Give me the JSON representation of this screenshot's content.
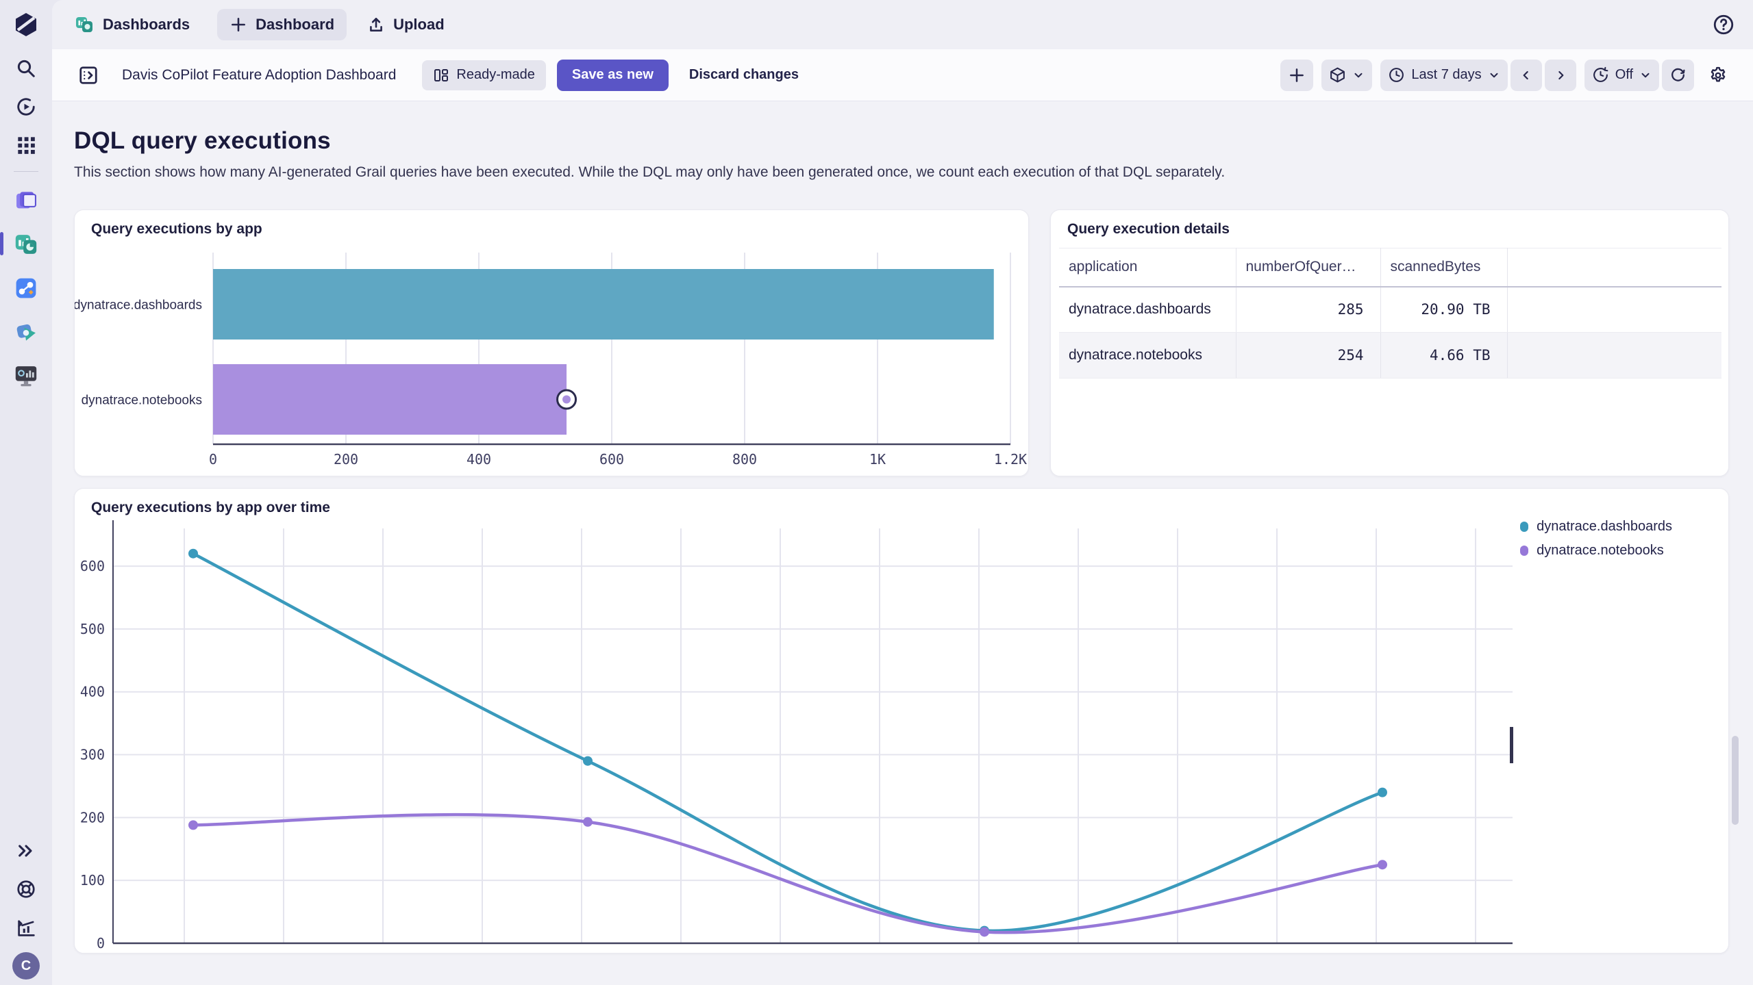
{
  "topbar": {
    "tab_dashboards": "Dashboards",
    "tab_new_dashboard": "Dashboard",
    "tab_upload": "Upload"
  },
  "header": {
    "dashboard_title": "Davis CoPilot Feature Adoption Dashboard",
    "badge_ready_made": "Ready-made",
    "save_as_new": "Save as new",
    "discard_changes": "Discard changes",
    "timeframe_label": "Last 7 days",
    "auto_refresh_label": "Off"
  },
  "section": {
    "title": "DQL query executions",
    "description": "This section shows how many AI-generated Grail queries have been executed. While the DQL may only have been generated once, we count each execution of that DQL separately."
  },
  "bar_tile": {
    "title": "Query executions by app"
  },
  "table_tile": {
    "title": "Query execution details",
    "columns": [
      "application",
      "numberOfQuer…",
      "scannedBytes"
    ],
    "rows": [
      {
        "application": "dynatrace.dashboards",
        "numberOfQueries": "285",
        "scannedBytes": "20.90 TB"
      },
      {
        "application": "dynatrace.notebooks",
        "numberOfQueries": "254",
        "scannedBytes": "4.66 TB"
      }
    ]
  },
  "line_tile": {
    "title": "Query executions by app over time",
    "legend": [
      "dynatrace.dashboards",
      "dynatrace.notebooks"
    ]
  },
  "sidebar": {
    "avatar_initial": "C"
  },
  "colors": {
    "accent": "#5a55c6",
    "teal": "#5fa7c3",
    "purple": "#a98fdf"
  },
  "chart_data": [
    {
      "id": "bar-by-app",
      "type": "bar",
      "orientation": "horizontal",
      "title": "Query executions by app",
      "categories": [
        "dynatrace.dashboards",
        "dynatrace.notebooks"
      ],
      "values": [
        1175,
        532
      ],
      "colors": [
        "#5fa7c3",
        "#a98fdf"
      ],
      "xlim": [
        0,
        1200
      ],
      "xticks": [
        {
          "v": 0,
          "label": "0"
        },
        {
          "v": 200,
          "label": "200"
        },
        {
          "v": 400,
          "label": "400"
        },
        {
          "v": 600,
          "label": "600"
        },
        {
          "v": 800,
          "label": "800"
        },
        {
          "v": 1000,
          "label": "1K"
        },
        {
          "v": 1200,
          "label": "1.2K"
        }
      ],
      "grid": true,
      "hover_point": {
        "category_index": 1
      }
    },
    {
      "id": "line-over-time",
      "type": "line",
      "title": "Query executions by app over time",
      "x_labels": [
        "",
        "",
        "",
        ""
      ],
      "series": [
        {
          "name": "dynatrace.dashboards",
          "color": "#3a9abc",
          "values": [
            620,
            290,
            20,
            240
          ]
        },
        {
          "name": "dynatrace.notebooks",
          "color": "#9678d8",
          "values": [
            188,
            193,
            18,
            125
          ]
        }
      ],
      "ylim": [
        0,
        660
      ],
      "yticks": [
        0,
        100,
        200,
        300,
        400,
        500,
        600
      ],
      "grid": true,
      "legend_position": "top-right",
      "smooth": true
    }
  ]
}
